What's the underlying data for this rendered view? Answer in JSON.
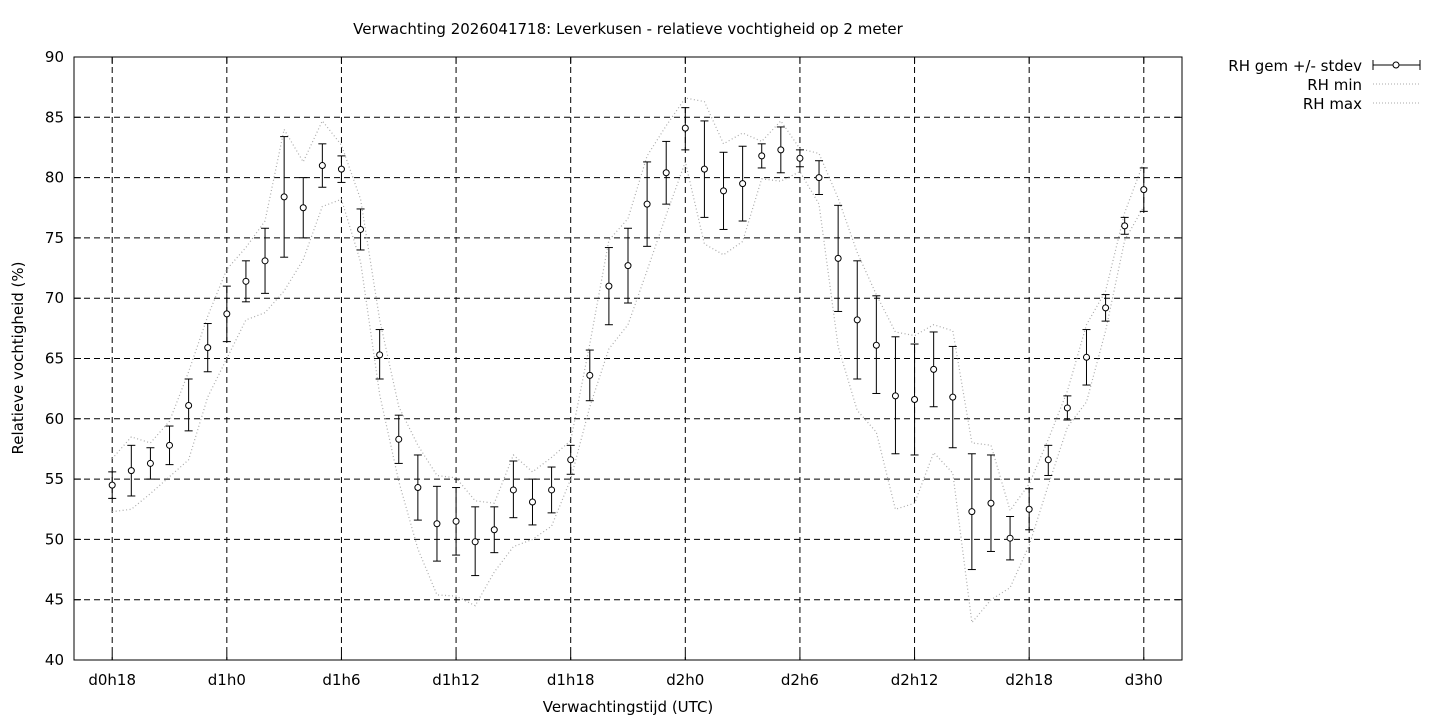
{
  "chart_data": {
    "type": "line",
    "title": "Verwachting 2026041718: Leverkusen - relatieve vochtigheid op 2 meter",
    "xlabel": "Verwachtingstijd (UTC)",
    "ylabel": "Relatieve vochtigheid (%)",
    "ylim": [
      40,
      90
    ],
    "yticks": [
      40,
      45,
      50,
      55,
      60,
      65,
      70,
      75,
      80,
      85,
      90
    ],
    "xlim": [
      -2,
      56
    ],
    "xticks": [
      {
        "x": 0,
        "label": "d0h18"
      },
      {
        "x": 6,
        "label": "d1h0"
      },
      {
        "x": 12,
        "label": "d1h6"
      },
      {
        "x": 18,
        "label": "d1h12"
      },
      {
        "x": 24,
        "label": "d1h18"
      },
      {
        "x": 30,
        "label": "d2h0"
      },
      {
        "x": 36,
        "label": "d2h6"
      },
      {
        "x": 42,
        "label": "d2h12"
      },
      {
        "x": 48,
        "label": "d2h18"
      },
      {
        "x": 54,
        "label": "d3h0"
      }
    ],
    "grid": true,
    "legend_position": "outside-top-right",
    "series": [
      {
        "name": "RH gem +/- stdev",
        "style": "errorbars",
        "color": "#000000",
        "x": [
          0,
          1,
          2,
          3,
          4,
          5,
          6,
          7,
          8,
          9,
          10,
          11,
          12,
          13,
          14,
          15,
          16,
          17,
          18,
          19,
          20,
          21,
          22,
          23,
          24,
          25,
          26,
          27,
          28,
          29,
          30,
          31,
          32,
          33,
          34,
          35,
          36,
          37,
          38,
          39,
          40,
          41,
          42,
          43,
          44,
          45,
          46,
          47,
          48,
          49,
          50,
          51,
          52,
          53,
          54
        ],
        "y": [
          54.5,
          55.7,
          56.3,
          57.8,
          61.1,
          65.9,
          68.7,
          71.4,
          73.1,
          78.4,
          77.5,
          81.0,
          80.7,
          75.7,
          65.3,
          58.3,
          54.3,
          51.3,
          51.5,
          49.8,
          50.8,
          54.1,
          53.1,
          54.1,
          56.6,
          63.6,
          71.0,
          72.7,
          77.8,
          80.4,
          84.1,
          80.7,
          78.9,
          79.5,
          81.8,
          82.3,
          81.6,
          80.0,
          73.3,
          68.2,
          66.1,
          61.9,
          61.6,
          64.1,
          61.8,
          52.3,
          53.0,
          50.1,
          52.5,
          56.6,
          60.9,
          65.1,
          69.2,
          76.0,
          79.0
        ],
        "low": [
          53.4,
          53.6,
          55.0,
          56.2,
          59.0,
          63.9,
          66.4,
          69.7,
          70.4,
          73.4,
          75.0,
          79.2,
          79.6,
          74.0,
          63.3,
          56.3,
          51.6,
          48.2,
          48.7,
          47.0,
          48.9,
          51.8,
          51.2,
          52.2,
          55.4,
          61.5,
          67.8,
          69.6,
          74.3,
          77.8,
          82.3,
          76.7,
          75.7,
          76.4,
          80.8,
          80.4,
          80.9,
          78.6,
          68.9,
          63.3,
          62.1,
          57.1,
          57.0,
          61.0,
          57.6,
          47.5,
          49.0,
          48.3,
          50.8,
          55.3,
          59.9,
          62.8,
          68.1,
          75.3,
          77.2
        ],
        "high": [
          55.6,
          57.8,
          57.6,
          59.4,
          63.3,
          67.9,
          71.0,
          73.1,
          75.8,
          83.4,
          80.0,
          82.8,
          81.8,
          77.4,
          67.4,
          60.3,
          57.0,
          54.4,
          54.3,
          52.7,
          52.7,
          56.5,
          55.0,
          56.0,
          57.8,
          65.7,
          74.2,
          75.8,
          81.3,
          83.0,
          85.8,
          84.7,
          82.1,
          82.6,
          82.8,
          84.2,
          82.3,
          81.4,
          77.7,
          73.1,
          70.2,
          66.8,
          66.2,
          67.2,
          66.0,
          57.1,
          57.0,
          51.9,
          54.2,
          57.8,
          61.9,
          67.4,
          70.3,
          76.7,
          80.8
        ]
      },
      {
        "name": "RH min",
        "style": "dotted",
        "color": "#aaaaaa",
        "x": [
          0,
          1,
          2,
          3,
          4,
          5,
          6,
          7,
          8,
          9,
          10,
          11,
          12,
          13,
          14,
          15,
          16,
          17,
          18,
          19,
          20,
          21,
          22,
          23,
          24,
          25,
          26,
          27,
          28,
          29,
          30,
          31,
          32,
          33,
          34,
          35,
          36,
          37,
          38,
          39,
          40,
          41,
          42,
          43,
          44,
          45,
          46,
          47,
          48,
          49,
          50,
          51,
          52,
          53,
          54
        ],
        "y": [
          52.3,
          52.5,
          53.8,
          55.2,
          56.6,
          61.8,
          65.0,
          68.2,
          68.8,
          70.6,
          73.2,
          77.6,
          78.2,
          73.0,
          62.0,
          54.8,
          49.2,
          45.4,
          45.3,
          44.5,
          47.3,
          49.4,
          50.0,
          51.1,
          55.0,
          61.0,
          65.8,
          67.8,
          72.3,
          76.9,
          81.3,
          74.5,
          73.6,
          74.7,
          79.9,
          79.7,
          80.5,
          77.8,
          66.0,
          60.7,
          58.9,
          52.5,
          53.0,
          57.2,
          55.5,
          43.1,
          45.0,
          46.0,
          49.5,
          54.5,
          59.3,
          61.4,
          67.3,
          74.8,
          77.6
        ]
      },
      {
        "name": "RH max",
        "style": "dotted",
        "color": "#aaaaaa",
        "x": [
          0,
          1,
          2,
          3,
          4,
          5,
          6,
          7,
          8,
          9,
          10,
          11,
          12,
          13,
          14,
          15,
          16,
          17,
          18,
          19,
          20,
          21,
          22,
          23,
          24,
          25,
          26,
          27,
          28,
          29,
          30,
          31,
          32,
          33,
          34,
          35,
          36,
          37,
          38,
          39,
          40,
          41,
          42,
          43,
          44,
          45,
          46,
          47,
          48,
          49,
          50,
          51,
          52,
          53,
          54
        ],
        "y": [
          56.7,
          58.5,
          58.0,
          59.8,
          63.9,
          68.5,
          72.4,
          74.2,
          76.4,
          84.0,
          81.3,
          84.7,
          82.7,
          78.2,
          68.2,
          61.0,
          57.8,
          55.3,
          55.1,
          53.2,
          53.0,
          57.0,
          55.6,
          56.8,
          58.2,
          66.2,
          74.8,
          76.6,
          81.8,
          84.3,
          86.6,
          86.3,
          82.8,
          83.7,
          83.0,
          84.7,
          82.4,
          82.0,
          78.3,
          73.8,
          70.3,
          67.2,
          66.9,
          67.8,
          67.3,
          58.0,
          57.8,
          52.4,
          54.6,
          58.3,
          62.3,
          67.8,
          70.6,
          77.1,
          81.3
        ]
      }
    ]
  }
}
